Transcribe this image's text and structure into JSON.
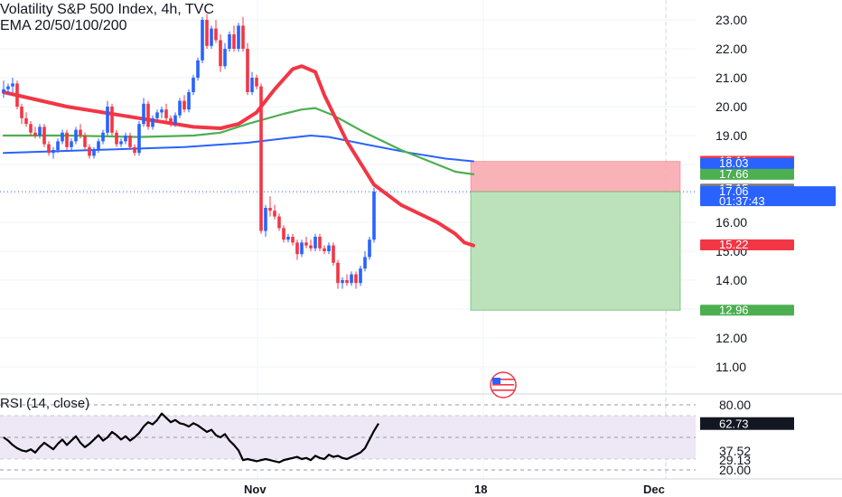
{
  "legend": {
    "title": "Volatility S&P 500 Index, 4h, TVC",
    "ema": "EMA 20/50/100/200"
  },
  "rsi_label": "RSI (14, close)",
  "colors": {
    "up": "#2962ff",
    "down": "#f23645",
    "ema20": "#f23645",
    "ema50": "#4caf50",
    "ema100": "#2962ff",
    "rsi": "#000000",
    "rsi_band": "#ede7f6",
    "stop_zone": "#f8a5ab",
    "target_zone": "#b7e0b6"
  },
  "chart_data": [
    {
      "type": "candlestick",
      "title": "Volatility S&P 500 Index, 4h, TVC",
      "y_ticks": [
        "23.00",
        "22.00",
        "21.00",
        "20.00",
        "19.00",
        "18.00",
        "17.00",
        "16.00",
        "15.00",
        "14.00",
        "13.00",
        "12.00",
        "11.00"
      ],
      "x_ticks": [
        "Nov",
        "18",
        "Dec"
      ],
      "ylim": [
        10.0,
        23.5
      ],
      "price_badges": [
        {
          "label": "18.11",
          "value": 18.11,
          "color": "#f23645"
        },
        {
          "label": "18.03",
          "value": 18.03,
          "color": "#2962ff"
        },
        {
          "label": "17.66",
          "value": 17.66,
          "color": "#4caf50"
        },
        {
          "label": "17.15",
          "value": 17.15,
          "color": "#787b86"
        },
        {
          "label": "17.06",
          "value": 17.06,
          "color": "#2962ff",
          "sub": "01:37:43"
        },
        {
          "label": "15.22",
          "value": 15.22,
          "color": "#f23645"
        },
        {
          "label": "12.96",
          "value": 12.96,
          "color": "#4caf50"
        }
      ],
      "position": {
        "entry": 17.06,
        "stop": 18.11,
        "target": 12.96
      },
      "ema20": [
        [
          0,
          20.5
        ],
        [
          14,
          20.0
        ],
        [
          30,
          19.6
        ],
        [
          42,
          19.3
        ],
        [
          48,
          19.25
        ],
        [
          52,
          19.4
        ],
        [
          56,
          19.8
        ],
        [
          60,
          20.6
        ],
        [
          64,
          21.3
        ],
        [
          66,
          21.4
        ],
        [
          69,
          21.2
        ],
        [
          71,
          20.4
        ],
        [
          76,
          18.8
        ],
        [
          82,
          17.3
        ],
        [
          88,
          16.6
        ],
        [
          96,
          16.0
        ],
        [
          100,
          15.6
        ],
        [
          102,
          15.3
        ],
        [
          104,
          15.2
        ]
      ],
      "ema50": [
        [
          0,
          19.0
        ],
        [
          14,
          19.0
        ],
        [
          30,
          18.95
        ],
        [
          42,
          19.0
        ],
        [
          48,
          19.1
        ],
        [
          54,
          19.4
        ],
        [
          62,
          19.75
        ],
        [
          66,
          19.9
        ],
        [
          69,
          19.95
        ],
        [
          73,
          19.7
        ],
        [
          80,
          19.1
        ],
        [
          88,
          18.5
        ],
        [
          96,
          18.0
        ],
        [
          100,
          17.75
        ],
        [
          104,
          17.66
        ]
      ],
      "ema100": [
        [
          0,
          18.4
        ],
        [
          20,
          18.5
        ],
        [
          40,
          18.6
        ],
        [
          54,
          18.75
        ],
        [
          62,
          18.9
        ],
        [
          68,
          19.0
        ],
        [
          72,
          18.95
        ],
        [
          80,
          18.7
        ],
        [
          90,
          18.4
        ],
        [
          98,
          18.2
        ],
        [
          104,
          18.11
        ]
      ],
      "candles": [
        [
          20.5,
          20.9,
          20.3,
          20.6
        ],
        [
          20.6,
          20.8,
          20.4,
          20.7
        ],
        [
          20.7,
          21.0,
          20.5,
          20.8
        ],
        [
          20.8,
          20.9,
          19.9,
          20.0
        ],
        [
          20.0,
          20.1,
          19.4,
          19.6
        ],
        [
          19.6,
          19.8,
          19.3,
          19.4
        ],
        [
          19.4,
          19.5,
          19.0,
          19.1
        ],
        [
          19.1,
          19.3,
          18.9,
          19.0
        ],
        [
          19.0,
          19.4,
          18.9,
          19.3
        ],
        [
          19.3,
          19.4,
          18.6,
          18.7
        ],
        [
          18.7,
          18.8,
          18.3,
          18.4
        ],
        [
          18.4,
          18.6,
          18.2,
          18.5
        ],
        [
          18.5,
          18.9,
          18.4,
          18.8
        ],
        [
          18.8,
          19.2,
          18.7,
          19.1
        ],
        [
          19.1,
          19.2,
          18.5,
          18.6
        ],
        [
          18.6,
          18.9,
          18.5,
          18.8
        ],
        [
          18.8,
          19.3,
          18.7,
          19.2
        ],
        [
          19.2,
          19.4,
          18.9,
          19.0
        ],
        [
          19.0,
          19.1,
          18.5,
          18.6
        ],
        [
          18.6,
          18.7,
          18.2,
          18.3
        ],
        [
          18.3,
          18.6,
          18.2,
          18.5
        ],
        [
          18.5,
          18.9,
          18.4,
          18.8
        ],
        [
          18.8,
          19.2,
          18.7,
          19.1
        ],
        [
          19.1,
          20.2,
          19.0,
          20.0
        ],
        [
          20.0,
          20.1,
          19.0,
          19.1
        ],
        [
          19.1,
          19.2,
          18.6,
          18.7
        ],
        [
          18.7,
          18.9,
          18.6,
          18.8
        ],
        [
          18.8,
          19.1,
          18.7,
          19.0
        ],
        [
          19.0,
          19.1,
          18.5,
          18.6
        ],
        [
          18.6,
          18.7,
          18.3,
          18.4
        ],
        [
          18.4,
          19.5,
          18.3,
          19.4
        ],
        [
          19.4,
          20.3,
          19.3,
          20.1
        ],
        [
          20.1,
          20.2,
          19.2,
          19.3
        ],
        [
          19.3,
          19.7,
          19.2,
          19.6
        ],
        [
          19.6,
          19.9,
          19.5,
          19.8
        ],
        [
          19.8,
          20.0,
          19.6,
          19.9
        ],
        [
          19.9,
          20.1,
          19.5,
          19.6
        ],
        [
          19.6,
          19.7,
          19.3,
          19.4
        ],
        [
          19.4,
          19.8,
          19.3,
          19.7
        ],
        [
          19.7,
          20.3,
          19.6,
          20.2
        ],
        [
          20.2,
          20.4,
          19.8,
          19.9
        ],
        [
          19.9,
          20.6,
          19.8,
          20.5
        ],
        [
          20.5,
          21.1,
          20.4,
          21.0
        ],
        [
          21.0,
          21.7,
          20.9,
          21.6
        ],
        [
          21.6,
          23.1,
          21.5,
          23.0
        ],
        [
          23.0,
          23.2,
          22.0,
          22.1
        ],
        [
          22.1,
          22.8,
          22.0,
          22.7
        ],
        [
          22.7,
          23.0,
          22.2,
          22.3
        ],
        [
          22.3,
          22.5,
          21.2,
          21.4
        ],
        [
          21.4,
          22.2,
          21.3,
          22.0
        ],
        [
          22.0,
          22.6,
          21.9,
          22.5
        ],
        [
          22.5,
          22.8,
          21.9,
          22.0
        ],
        [
          22.0,
          22.9,
          21.9,
          22.8
        ],
        [
          22.8,
          23.1,
          21.9,
          22.0
        ],
        [
          22.0,
          22.2,
          20.4,
          20.5
        ],
        [
          20.5,
          21.2,
          20.4,
          21.0
        ],
        [
          21.0,
          21.1,
          20.6,
          20.7
        ],
        [
          20.7,
          20.8,
          15.6,
          15.7
        ],
        [
          15.7,
          16.6,
          15.5,
          16.5
        ],
        [
          16.5,
          16.9,
          16.2,
          16.4
        ],
        [
          16.4,
          16.6,
          16.1,
          16.2
        ],
        [
          16.2,
          16.3,
          15.7,
          15.8
        ],
        [
          15.8,
          15.9,
          15.3,
          15.4
        ],
        [
          15.4,
          15.6,
          15.3,
          15.5
        ],
        [
          15.5,
          15.6,
          15.2,
          15.3
        ],
        [
          15.3,
          15.4,
          14.7,
          14.9
        ],
        [
          14.9,
          15.4,
          14.8,
          15.3
        ],
        [
          15.3,
          15.5,
          15.1,
          15.2
        ],
        [
          15.2,
          15.4,
          15.0,
          15.1
        ],
        [
          15.1,
          15.6,
          15.0,
          15.5
        ],
        [
          15.5,
          15.6,
          15.0,
          15.1
        ],
        [
          15.1,
          15.2,
          14.9,
          15.0
        ],
        [
          15.0,
          15.3,
          14.9,
          15.2
        ],
        [
          15.2,
          15.3,
          14.5,
          14.6
        ],
        [
          14.6,
          14.7,
          13.7,
          13.9
        ],
        [
          13.9,
          14.1,
          13.7,
          14.0
        ],
        [
          14.0,
          14.2,
          13.8,
          13.9
        ],
        [
          13.9,
          14.3,
          13.8,
          14.2
        ],
        [
          14.2,
          14.3,
          13.7,
          13.9
        ],
        [
          13.9,
          14.5,
          13.8,
          14.4
        ],
        [
          14.4,
          15.0,
          14.3,
          14.8
        ],
        [
          14.8,
          15.5,
          14.7,
          15.4
        ],
        [
          15.4,
          17.2,
          15.3,
          17.06
        ]
      ]
    },
    {
      "type": "line",
      "title": "RSI (14, close)",
      "y_ticks": [
        "80.00",
        "37.52",
        "29.13",
        "20.00"
      ],
      "value_badge": {
        "label": "62.73",
        "value": 62.73,
        "color": "#131722"
      },
      "ylim": [
        18,
        82
      ],
      "bands": [
        30,
        70
      ],
      "values": [
        50,
        47,
        43,
        40,
        38,
        37,
        39,
        36,
        41,
        45,
        42,
        39,
        44,
        48,
        43,
        47,
        51,
        45,
        41,
        44,
        48,
        52,
        47,
        50,
        55,
        52,
        48,
        51,
        47,
        50,
        54,
        60,
        64,
        62,
        66,
        72,
        68,
        64,
        66,
        63,
        62,
        60,
        63,
        61,
        58,
        55,
        57,
        52,
        50,
        53,
        47,
        43,
        38,
        29,
        30,
        29,
        28,
        29,
        30,
        29,
        28,
        27,
        29,
        30,
        31,
        32,
        30,
        31,
        29,
        33,
        31,
        30,
        34,
        32,
        33,
        31,
        30,
        32,
        34,
        36,
        40,
        48,
        56,
        62.73
      ]
    }
  ]
}
